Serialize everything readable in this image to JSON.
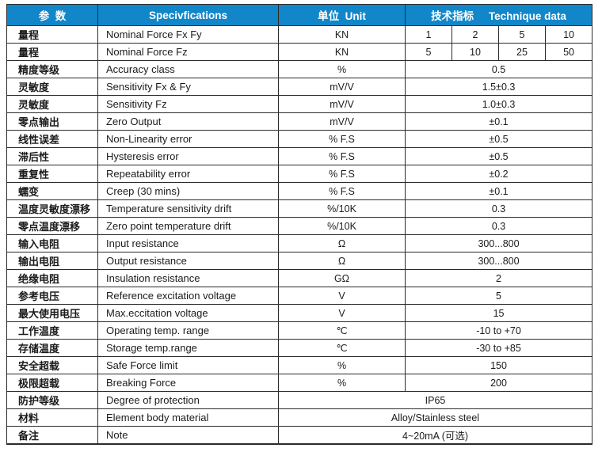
{
  "colors": {
    "header_background": "#1187c9",
    "header_text": "#ffffff",
    "border": "#2b2b2b",
    "body_text": "#1b1b1b"
  },
  "table": {
    "headers": {
      "parameter": "参  数",
      "specifications": "Specivfications",
      "unit": "单位  Unit",
      "technique_data": "技术指标     Technique data"
    },
    "rows": [
      {
        "param": "量程",
        "spec": "Nominal Force Fx Fy",
        "unit": "KN",
        "values": [
          "1",
          "2",
          "5",
          "10"
        ]
      },
      {
        "param": "量程",
        "spec": "Nominal Force Fz",
        "unit": "KN",
        "values": [
          "5",
          "10",
          "25",
          "50"
        ]
      },
      {
        "param": "精度等级",
        "spec": "Accuracy class",
        "unit": "%",
        "value": "0.5"
      },
      {
        "param": "灵敏度",
        "spec": "Sensitivity Fx & Fy",
        "unit": "mV/V",
        "value": "1.5±0.3"
      },
      {
        "param": "灵敏度",
        "spec": "Sensitivity Fz",
        "unit": "mV/V",
        "value": "1.0±0.3"
      },
      {
        "param": "零点输出",
        "spec": "Zero Output",
        "unit": "mV/V",
        "value": "±0.1"
      },
      {
        "param": "线性误差",
        "spec": "Non-Linearity error",
        "unit": "% F.S",
        "value": "±0.5"
      },
      {
        "param": "滞后性",
        "spec": "Hysteresis error",
        "unit": "% F.S",
        "value": "±0.5"
      },
      {
        "param": "重复性",
        "spec": "Repeatability error",
        "unit": "% F.S",
        "value": "±0.2"
      },
      {
        "param": "蠕变",
        "spec": "Creep (30 mins)",
        "unit": "% F.S",
        "value": "±0.1"
      },
      {
        "param": "温度灵敏度漂移",
        "spec": "Temperature sensitivity drift",
        "unit": "%/10K",
        "value": "0.3"
      },
      {
        "param": "零点温度漂移",
        "spec": "Zero point temperature drift",
        "unit": "%/10K",
        "value": "0.3"
      },
      {
        "param": "输入电阻",
        "spec": "Input resistance",
        "unit": "Ω",
        "value": "300...800"
      },
      {
        "param": "输出电阻",
        "spec": "Output resistance",
        "unit": "Ω",
        "value": "300...800"
      },
      {
        "param": "绝缘电阻",
        "spec": "Insulation resistance",
        "unit": "GΩ",
        "value": "2"
      },
      {
        "param": "参考电压",
        "spec": "Reference excitation voltage",
        "unit": "V",
        "value": "5"
      },
      {
        "param": "最大使用电压",
        "spec": "Max.eccitation voltage",
        "unit": "V",
        "value": "15"
      },
      {
        "param": "工作温度",
        "spec": "Operating temp. range",
        "unit": "℃",
        "value": "-10 to +70"
      },
      {
        "param": "存储温度",
        "spec": "Storage temp.range",
        "unit": "℃",
        "value": "-30 to +85"
      },
      {
        "param": "安全超载",
        "spec": "Safe Force limit",
        "unit": "%",
        "value": "150"
      },
      {
        "param": "极限超载",
        "spec": "Breaking Force",
        "unit": "%",
        "value": "200"
      },
      {
        "param": "防护等级",
        "spec": "Degree of protection",
        "span": true,
        "value": "IP65"
      },
      {
        "param": "材料",
        "spec": "Element body material",
        "span": true,
        "value": "Alloy/Stainless steel"
      },
      {
        "param": "备注",
        "spec": "Note",
        "span": true,
        "value": "4~20mA (可选)"
      }
    ]
  }
}
